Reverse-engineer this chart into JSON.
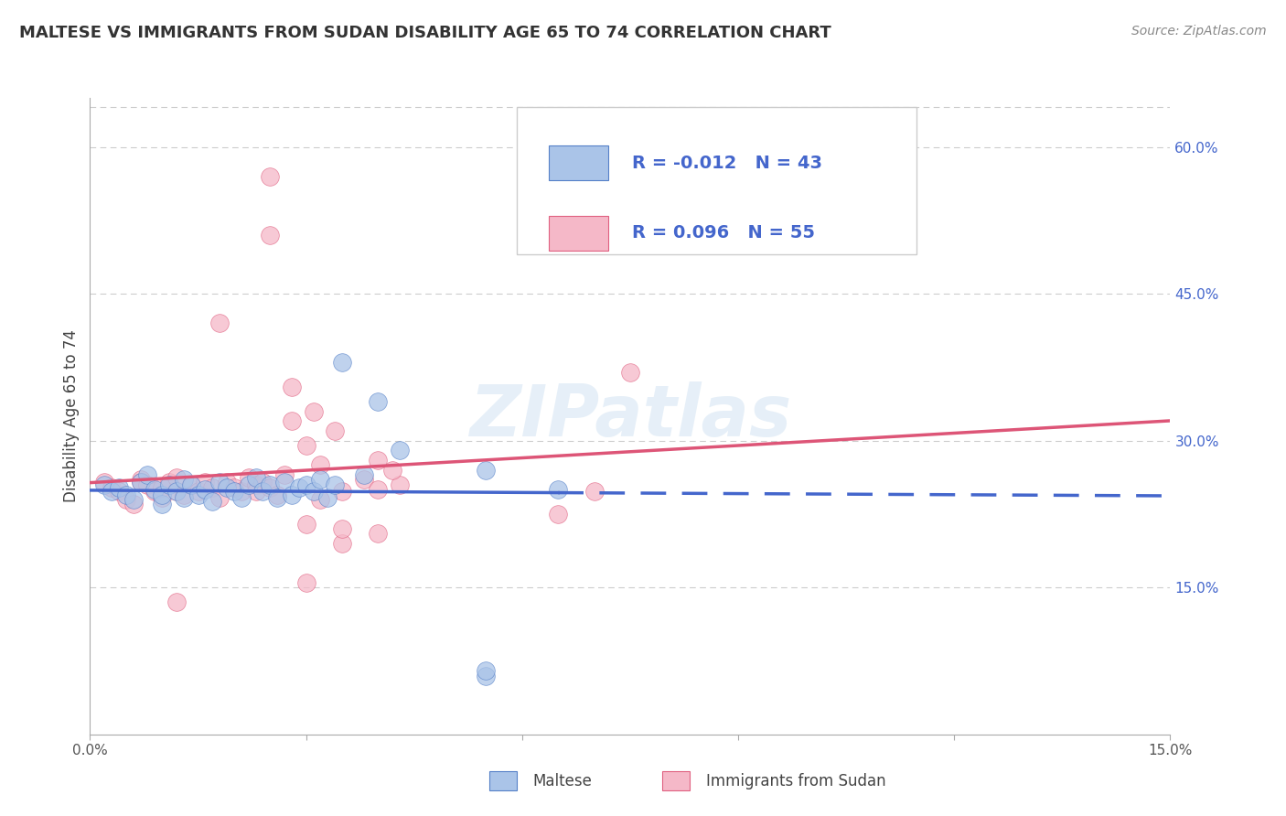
{
  "title": "MALTESE VS IMMIGRANTS FROM SUDAN DISABILITY AGE 65 TO 74 CORRELATION CHART",
  "source": "Source: ZipAtlas.com",
  "ylabel": "Disability Age 65 to 74",
  "legend_label1": "Maltese",
  "legend_label2": "Immigrants from Sudan",
  "r1": -0.012,
  "n1": 43,
  "r2": 0.096,
  "n2": 55,
  "color1": "#aac4e8",
  "color2": "#f5b8c8",
  "edge_color1": "#5580c8",
  "edge_color2": "#e06080",
  "line_color1": "#4466cc",
  "line_color2": "#dd5577",
  "xmin": 0.0,
  "xmax": 0.15,
  "ymin": 0.0,
  "ymax": 0.65,
  "ytick_vals": [
    0.15,
    0.3,
    0.45,
    0.6
  ],
  "ytick_labels": [
    "15.0%",
    "30.0%",
    "45.0%",
    "60.0%"
  ],
  "watermark": "ZIPatlas",
  "maltese_x": [
    0.002,
    0.003,
    0.004,
    0.005,
    0.006,
    0.007,
    0.008,
    0.009,
    0.01,
    0.01,
    0.011,
    0.012,
    0.013,
    0.013,
    0.014,
    0.015,
    0.016,
    0.017,
    0.018,
    0.019,
    0.02,
    0.021,
    0.022,
    0.023,
    0.024,
    0.025,
    0.026,
    0.027,
    0.028,
    0.029,
    0.03,
    0.031,
    0.032,
    0.033,
    0.034,
    0.035,
    0.038,
    0.04,
    0.043,
    0.055,
    0.065,
    0.055,
    0.055
  ],
  "maltese_y": [
    0.255,
    0.248,
    0.252,
    0.245,
    0.24,
    0.258,
    0.265,
    0.25,
    0.235,
    0.245,
    0.255,
    0.248,
    0.26,
    0.242,
    0.255,
    0.245,
    0.25,
    0.238,
    0.258,
    0.252,
    0.248,
    0.242,
    0.255,
    0.262,
    0.248,
    0.255,
    0.242,
    0.258,
    0.245,
    0.252,
    0.255,
    0.248,
    0.26,
    0.242,
    0.255,
    0.38,
    0.265,
    0.34,
    0.29,
    0.27,
    0.25,
    0.06,
    0.065
  ],
  "sudan_x": [
    0.002,
    0.003,
    0.004,
    0.005,
    0.006,
    0.007,
    0.007,
    0.008,
    0.009,
    0.01,
    0.01,
    0.011,
    0.012,
    0.012,
    0.013,
    0.014,
    0.015,
    0.016,
    0.017,
    0.018,
    0.019,
    0.02,
    0.021,
    0.022,
    0.023,
    0.023,
    0.024,
    0.025,
    0.026,
    0.027,
    0.028,
    0.03,
    0.031,
    0.032,
    0.034,
    0.035,
    0.038,
    0.04,
    0.043,
    0.018,
    0.025,
    0.028,
    0.03,
    0.032,
    0.04,
    0.042,
    0.075,
    0.07,
    0.065,
    0.04,
    0.035,
    0.035,
    0.012,
    0.025,
    0.03
  ],
  "sudan_y": [
    0.258,
    0.252,
    0.248,
    0.24,
    0.235,
    0.26,
    0.258,
    0.255,
    0.248,
    0.242,
    0.252,
    0.258,
    0.248,
    0.262,
    0.245,
    0.255,
    0.248,
    0.258,
    0.252,
    0.242,
    0.258,
    0.252,
    0.248,
    0.262,
    0.255,
    0.248,
    0.258,
    0.252,
    0.245,
    0.265,
    0.355,
    0.295,
    0.33,
    0.275,
    0.31,
    0.248,
    0.26,
    0.28,
    0.255,
    0.42,
    0.51,
    0.32,
    0.215,
    0.24,
    0.25,
    0.27,
    0.37,
    0.248,
    0.225,
    0.205,
    0.195,
    0.21,
    0.135,
    0.57,
    0.155
  ]
}
